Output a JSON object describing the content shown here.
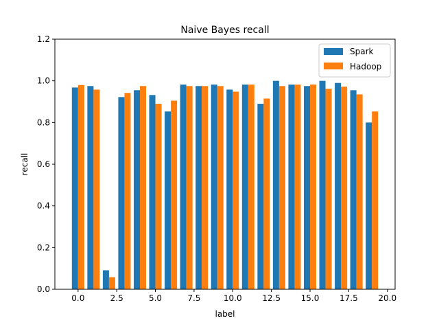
{
  "chart_data": {
    "type": "bar",
    "title": "Naive Bayes recall",
    "xlabel": "label",
    "ylabel": "recall",
    "xlim": [
      -1.5,
      20.5
    ],
    "ylim": [
      0,
      1.2
    ],
    "x_ticks": [
      0.0,
      2.5,
      5.0,
      7.5,
      10.0,
      12.5,
      15.0,
      17.5,
      20.0
    ],
    "x_tick_labels": [
      "0.0",
      "2.5",
      "5.0",
      "7.5",
      "10.0",
      "12.5",
      "15.0",
      "17.5",
      "20.0"
    ],
    "y_ticks": [
      0.0,
      0.2,
      0.4,
      0.6,
      0.8,
      1.0,
      1.2
    ],
    "y_tick_labels": [
      "0.0",
      "0.2",
      "0.4",
      "0.6",
      "0.8",
      "1.0",
      "1.2"
    ],
    "grid": false,
    "legend_position": "top-right",
    "categories": [
      0,
      1,
      2,
      3,
      4,
      5,
      6,
      7,
      8,
      9,
      10,
      11,
      12,
      13,
      14,
      15,
      16,
      17,
      18,
      19
    ],
    "series": [
      {
        "name": "Spark",
        "color": "#1f77b4",
        "values": [
          0.968,
          0.975,
          0.091,
          0.922,
          0.955,
          0.932,
          0.853,
          0.982,
          0.975,
          0.982,
          0.958,
          0.982,
          0.89,
          1.0,
          0.982,
          0.975,
          1.0,
          0.99,
          0.955,
          0.8
        ]
      },
      {
        "name": "Hadoop",
        "color": "#ff7f0e",
        "values": [
          0.98,
          0.958,
          0.058,
          0.942,
          0.975,
          0.89,
          0.905,
          0.975,
          0.975,
          0.975,
          0.948,
          0.982,
          0.915,
          0.975,
          0.982,
          0.982,
          0.962,
          0.972,
          0.935,
          0.853
        ]
      }
    ]
  }
}
